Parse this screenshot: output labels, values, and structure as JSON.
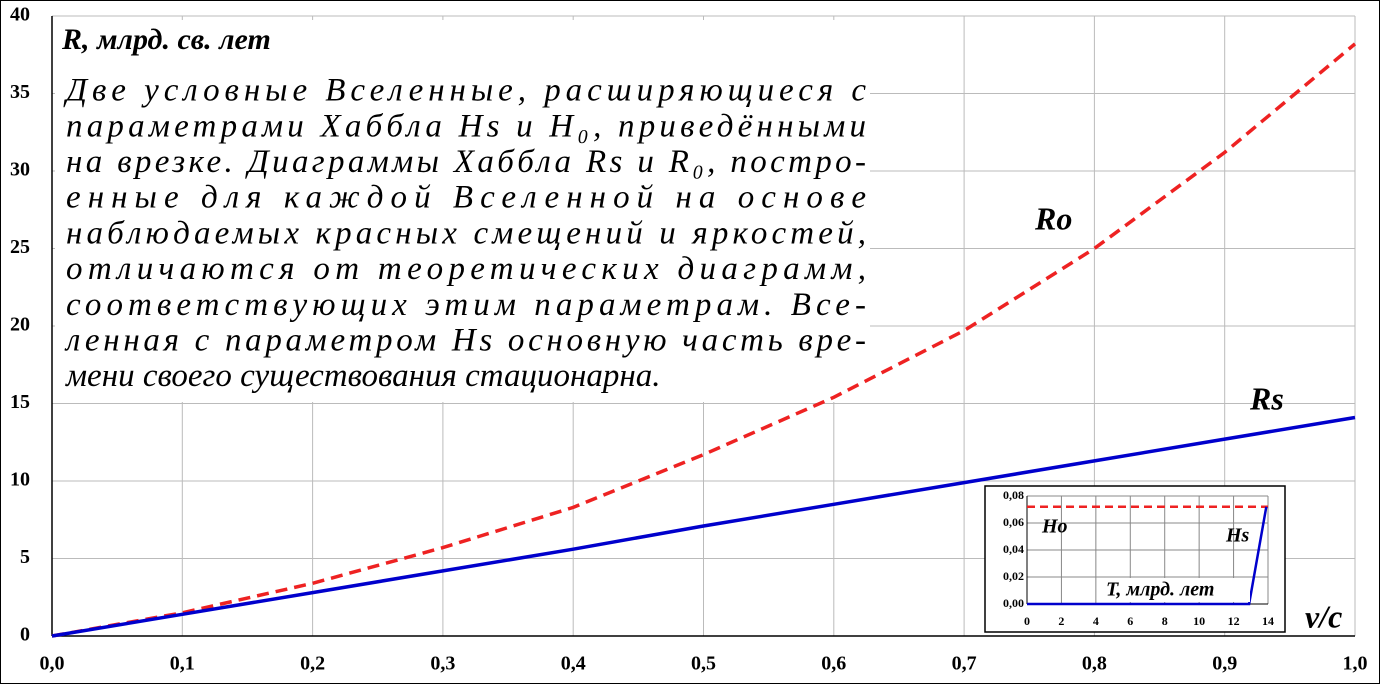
{
  "chart_data": [
    {
      "type": "line",
      "y_label": "R, млрд. св. лет",
      "x_label": "v/c",
      "x": [
        0,
        0.1,
        0.2,
        0.3,
        0.4,
        0.5,
        0.6,
        0.7,
        0.8,
        0.9,
        1.0
      ],
      "series": [
        {
          "name": "Ro",
          "color": "#ee2222",
          "dashed": true,
          "values": [
            0,
            1.5,
            3.4,
            5.7,
            8.3,
            11.7,
            15.4,
            19.7,
            25.0,
            31.2,
            38.2
          ]
        },
        {
          "name": "Rs",
          "color": "#0000cc",
          "dashed": false,
          "values": [
            0,
            1.4,
            2.8,
            4.2,
            5.6,
            7.1,
            8.5,
            9.9,
            11.3,
            12.7,
            14.1
          ]
        }
      ],
      "xlim": [
        0,
        1.0
      ],
      "xticks": [
        {
          "value": 0,
          "label": "0,0"
        },
        {
          "value": 0.1,
          "label": "0,1"
        },
        {
          "value": 0.2,
          "label": "0,2"
        },
        {
          "value": 0.3,
          "label": "0,3"
        },
        {
          "value": 0.4,
          "label": "0,4"
        },
        {
          "value": 0.5,
          "label": "0,5"
        },
        {
          "value": 0.6,
          "label": "0,6"
        },
        {
          "value": 0.7,
          "label": "0,7"
        },
        {
          "value": 0.8,
          "label": "0,8"
        },
        {
          "value": 0.9,
          "label": "0,9"
        },
        {
          "value": 1.0,
          "label": "1,0"
        }
      ],
      "ylim": [
        0,
        40
      ],
      "yticks": [
        0,
        5,
        10,
        15,
        20,
        25,
        30,
        35,
        40
      ],
      "grid": true,
      "annotation_lines": [
        "Две условные Вселенные, расширяющиеся с",
        "параметрами Хаббла Hs и H₀, приведёнными",
        "на врезке. Диаграммы Хаббла Rs и R₀, постро-",
        "енные для каждой Вселенной на основе",
        "наблюдаемых красных смещений и яркостей,",
        "отличаются от теоретических диаграмм,",
        "соответствующих этим параметрам. Все-",
        "ленная с параметром Hs основную часть вре-",
        "мени своего существования стационарна."
      ]
    },
    {
      "type": "line",
      "x_label": "T, млрд. лет",
      "series": [
        {
          "name": "Ho",
          "color": "#ee2222",
          "dashed": true,
          "x": [
            0,
            14
          ],
          "values": [
            0.072,
            0.072
          ]
        },
        {
          "name": "Hs",
          "color": "#0000cc",
          "dashed": false,
          "x": [
            0,
            12.9,
            13.9
          ],
          "values": [
            0,
            0,
            0.072
          ]
        }
      ],
      "xlim": [
        0,
        14
      ],
      "xticks": [
        0,
        2,
        4,
        6,
        8,
        10,
        12,
        14
      ],
      "ylim": [
        0,
        0.08
      ],
      "yticks": [
        {
          "value": 0,
          "label": "0,00"
        },
        {
          "value": 0.02,
          "label": "0,02"
        },
        {
          "value": 0.04,
          "label": "0,04"
        },
        {
          "value": 0.06,
          "label": "0,06"
        },
        {
          "value": 0.08,
          "label": "0,08"
        }
      ],
      "grid": true
    }
  ]
}
